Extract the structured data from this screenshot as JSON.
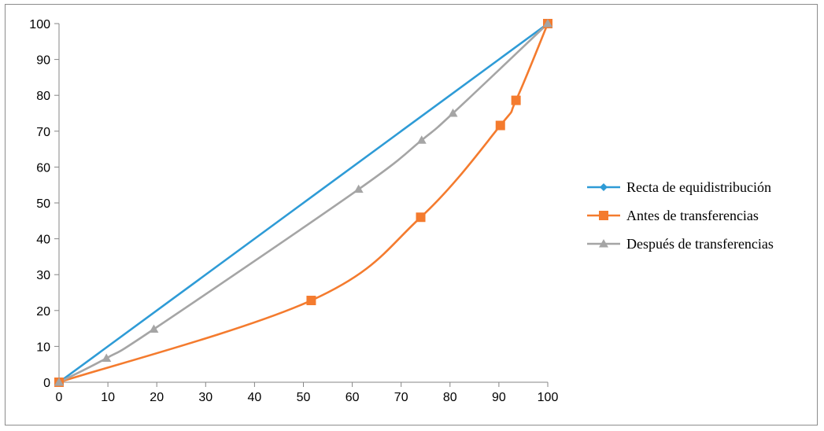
{
  "chart_data": {
    "type": "line",
    "title": "",
    "xlabel": "",
    "ylabel": "",
    "xlim": [
      0,
      100
    ],
    "ylim": [
      0,
      100
    ],
    "x_ticks": [
      0,
      10,
      20,
      30,
      40,
      50,
      60,
      70,
      80,
      90,
      100
    ],
    "y_ticks": [
      0,
      10,
      20,
      30,
      40,
      50,
      60,
      70,
      80,
      90,
      100
    ],
    "grid": false,
    "legend_position": "right",
    "series": [
      {
        "name": "Recta de equidistribución",
        "color": "#2e9bd6",
        "marker": "diamond",
        "smooth": false,
        "points": [
          [
            0,
            0
          ],
          [
            100,
            100
          ]
        ]
      },
      {
        "name": "Antes de transferencias",
        "color": "#f47b2e",
        "marker": "square",
        "smooth": true,
        "points": [
          [
            0,
            0
          ],
          [
            51.6,
            22.8
          ],
          [
            74,
            46
          ],
          [
            90.3,
            71.6
          ],
          [
            93.5,
            78.6
          ],
          [
            100,
            100
          ]
        ]
      },
      {
        "name": "Después de transferencias",
        "color": "#a5a5a5",
        "marker": "triangle",
        "smooth": true,
        "points": [
          [
            0,
            0
          ],
          [
            9.7,
            6.7
          ],
          [
            19.4,
            14.8
          ],
          [
            61.3,
            53.8
          ],
          [
            74.2,
            67.5
          ],
          [
            80.6,
            75
          ],
          [
            100,
            100
          ]
        ]
      }
    ]
  }
}
